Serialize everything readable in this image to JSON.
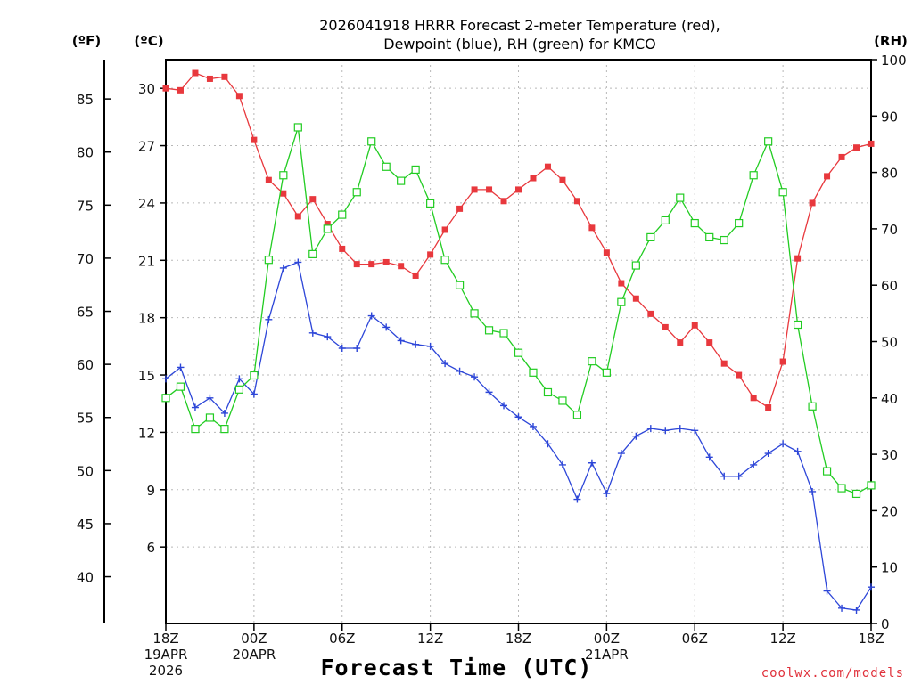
{
  "chart_data": {
    "type": "line",
    "title_line1": "2026041918 HRRR Forecast 2-meter Temperature (red),",
    "title_line2": "Dewpoint (blue), RH (green) for KMCO",
    "xlabel": "Forecast Time (UTC)",
    "credit": "coolwx.com/models",
    "unit_f": "(ºF)",
    "unit_c": "(ºC)",
    "unit_rh": "(RH)",
    "x_range_hours": [
      0,
      48
    ],
    "y_range_c": [
      2.0,
      31.5
    ],
    "y2_range_rh": [
      0,
      100
    ],
    "grid": true,
    "x_ticks": [
      {
        "hour": 0,
        "lines": [
          "18Z",
          "19APR",
          "2026"
        ]
      },
      {
        "hour": 6,
        "lines": [
          "00Z",
          "20APR"
        ]
      },
      {
        "hour": 12,
        "lines": [
          "06Z"
        ]
      },
      {
        "hour": 18,
        "lines": [
          "12Z"
        ]
      },
      {
        "hour": 24,
        "lines": [
          "18Z"
        ]
      },
      {
        "hour": 30,
        "lines": [
          "00Z",
          "21APR"
        ]
      },
      {
        "hour": 36,
        "lines": [
          "06Z"
        ]
      },
      {
        "hour": 42,
        "lines": [
          "12Z"
        ]
      },
      {
        "hour": 48,
        "lines": [
          "18Z"
        ]
      }
    ],
    "c_ticks": [
      "6",
      "9",
      "12",
      "15",
      "18",
      "21",
      "24",
      "27",
      "30"
    ],
    "f_ticks": [
      "40",
      "45",
      "50",
      "55",
      "60",
      "65",
      "70",
      "75",
      "80",
      "85"
    ],
    "rh_ticks": [
      "0",
      "10",
      "20",
      "30",
      "40",
      "50",
      "60",
      "70",
      "80",
      "90",
      "100"
    ],
    "series": [
      {
        "name": "Temperature",
        "unit": "C",
        "color": "#e8383d",
        "marker": "filled-square",
        "values": [
          30.0,
          29.9,
          30.8,
          30.5,
          30.6,
          29.6,
          27.3,
          25.2,
          24.5,
          23.3,
          24.2,
          22.9,
          21.6,
          20.8,
          20.8,
          20.9,
          20.7,
          20.2,
          21.3,
          22.6,
          23.7,
          24.7,
          24.7,
          24.1,
          24.7,
          25.3,
          25.9,
          25.2,
          24.1,
          22.7,
          21.4,
          19.8,
          19.0,
          18.2,
          17.5,
          16.7,
          17.6,
          16.7,
          15.6,
          15.0,
          13.8,
          13.3,
          15.7,
          21.1,
          24.0,
          25.4,
          26.4,
          26.9,
          27.1
        ]
      },
      {
        "name": "Dewpoint",
        "unit": "C",
        "color": "#2d46d8",
        "marker": "plus",
        "values": [
          14.8,
          15.4,
          13.3,
          13.8,
          13.0,
          14.8,
          14.0,
          17.9,
          20.6,
          20.9,
          17.2,
          17.0,
          16.4,
          16.4,
          18.1,
          17.5,
          16.8,
          16.6,
          16.5,
          15.6,
          15.2,
          14.9,
          14.1,
          13.4,
          12.8,
          12.3,
          11.4,
          10.3,
          8.5,
          10.4,
          8.8,
          10.9,
          11.8,
          12.2,
          12.1,
          12.2,
          12.1,
          10.7,
          9.7,
          9.7,
          10.3,
          10.9,
          11.4,
          11.0,
          8.9,
          3.7,
          2.8,
          2.7,
          3.9
        ]
      },
      {
        "name": "RH",
        "unit": "%",
        "color": "#22cc22",
        "marker": "open-square",
        "values": [
          40.0,
          42.0,
          34.5,
          36.5,
          34.5,
          41.5,
          44.0,
          64.5,
          79.5,
          88.0,
          65.5,
          70.0,
          72.5,
          76.5,
          85.5,
          81.0,
          78.5,
          80.5,
          74.5,
          64.5,
          60.0,
          55.0,
          52.0,
          51.5,
          48.0,
          44.5,
          41.0,
          39.5,
          37.0,
          46.5,
          44.5,
          57.0,
          63.5,
          68.5,
          71.5,
          75.5,
          71.0,
          68.5,
          68.0,
          71.0,
          79.5,
          85.5,
          76.5,
          53.0,
          38.5,
          27.0,
          24.0,
          23.0,
          24.5
        ]
      }
    ]
  }
}
